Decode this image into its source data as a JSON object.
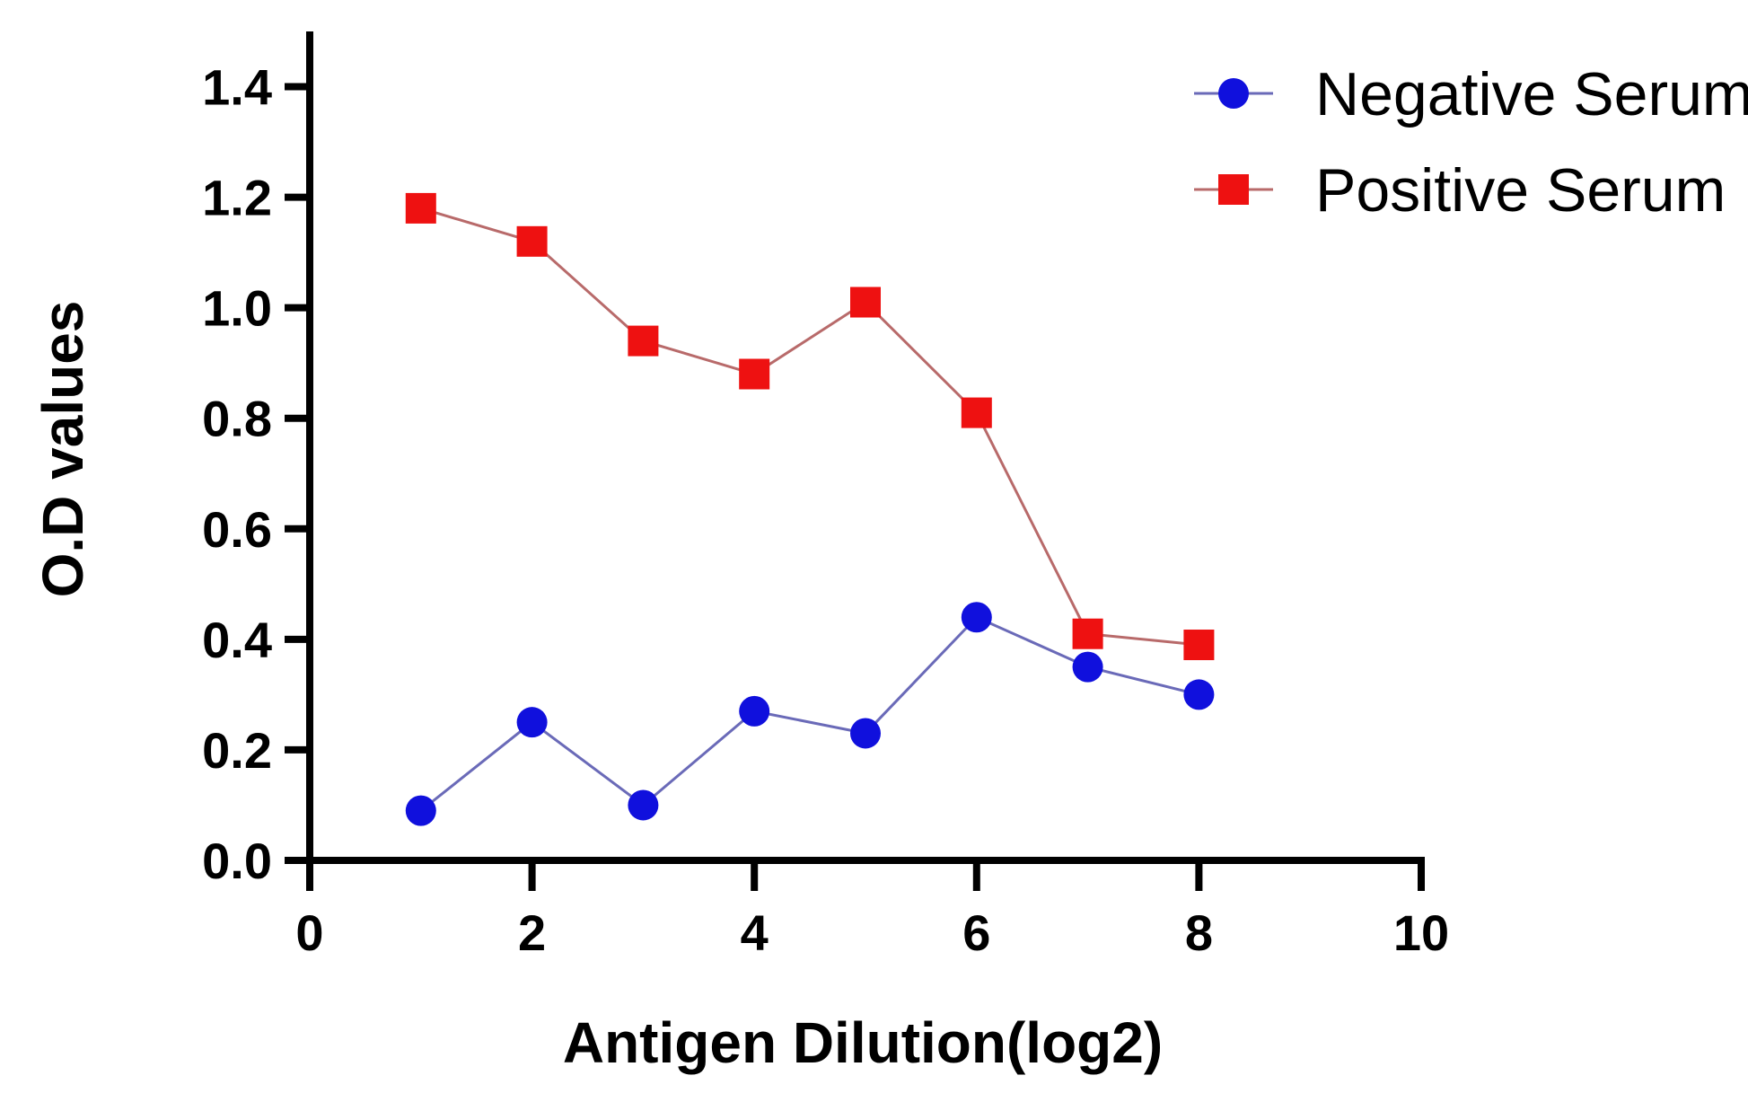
{
  "chart_data": {
    "type": "line",
    "xlabel": "Antigen Dilution(log2)",
    "ylabel": "O.D values",
    "xlim": [
      0,
      10
    ],
    "ylim": [
      0,
      1.5
    ],
    "x_ticks": [
      "0",
      "2",
      "4",
      "6",
      "8",
      "10"
    ],
    "y_ticks": [
      "0.0",
      "0.2",
      "0.4",
      "0.6",
      "0.8",
      "1.0",
      "1.2",
      "1.4"
    ],
    "grid": false,
    "legend_position": "top-right",
    "x": [
      1,
      2,
      3,
      4,
      5,
      6,
      7,
      8
    ],
    "series": [
      {
        "name": "Negative Serum",
        "marker": "circle",
        "color": "#1010dd",
        "line_color": "#6a6ab8",
        "values": [
          0.09,
          0.25,
          0.1,
          0.27,
          0.23,
          0.44,
          0.35,
          0.3
        ]
      },
      {
        "name": "Positive Serum",
        "marker": "square",
        "color": "#ee1111",
        "line_color": "#b86a6a",
        "values": [
          1.18,
          1.12,
          0.94,
          0.88,
          1.01,
          0.81,
          0.41,
          0.39
        ]
      }
    ]
  }
}
